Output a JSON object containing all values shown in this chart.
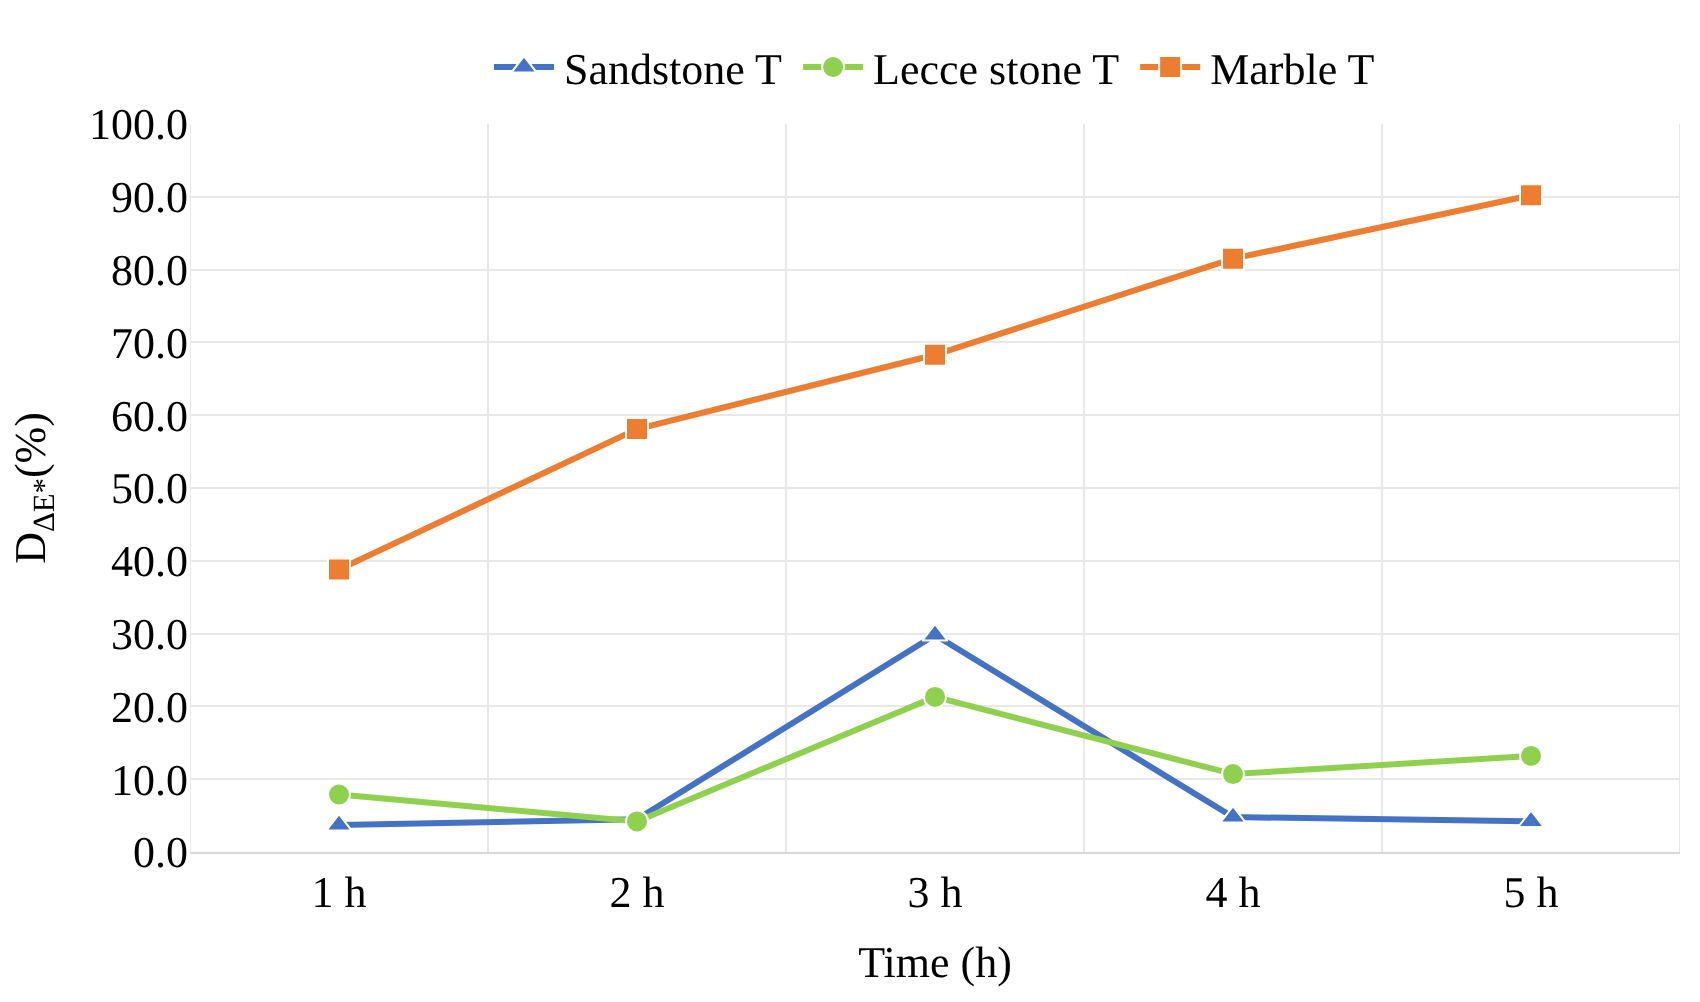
{
  "chart_data": {
    "type": "line",
    "xlabel": "Time (h)",
    "ylabel": "D$_{ΔE*}$(%)",
    "categories": [
      "1 h",
      "2 h",
      "3 h",
      "4 h",
      "5 h"
    ],
    "series": [
      {
        "name": "Sandstone T",
        "color": "#4472c4",
        "marker": "triangle",
        "values": [
          3.7,
          4.5,
          29.8,
          4.8,
          4.2
        ]
      },
      {
        "name": "Lecce stone T",
        "color": "#8fd14f",
        "marker": "circle",
        "values": [
          7.9,
          4.2,
          21.3,
          10.7,
          13.2
        ]
      },
      {
        "name": "Marble T",
        "color": "#ed7d31",
        "marker": "square",
        "values": [
          38.8,
          58.1,
          68.3,
          81.5,
          90.2
        ]
      }
    ],
    "ylim": [
      0,
      100
    ],
    "yticks": [
      {
        "value": 0,
        "label": "0.0"
      },
      {
        "value": 10,
        "label": "10.0"
      },
      {
        "value": 20,
        "label": "20.0"
      },
      {
        "value": 30,
        "label": "30.0"
      },
      {
        "value": 40,
        "label": "40.0"
      },
      {
        "value": 50,
        "label": "50.0"
      },
      {
        "value": 60,
        "label": "60.0"
      },
      {
        "value": 70,
        "label": "70.0"
      },
      {
        "value": 80,
        "label": "80.0"
      },
      {
        "value": 90,
        "label": "90.0"
      },
      {
        "value": 100,
        "label": "100.0"
      }
    ],
    "grid": true,
    "legend": "top",
    "line_style": "solid"
  }
}
